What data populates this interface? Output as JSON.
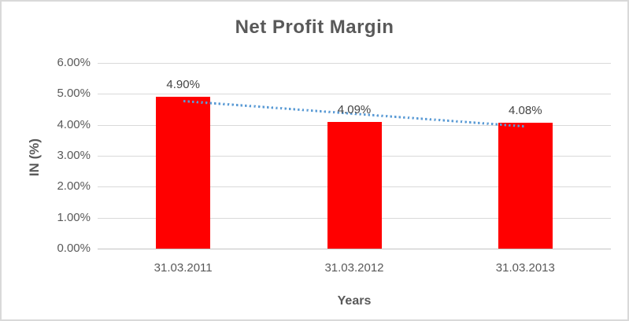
{
  "chart_data": {
    "type": "bar",
    "title": "Net Profit Margin",
    "xlabel": "Years",
    "ylabel": "IN (%)",
    "categories": [
      "31.03.2011",
      "31.03.2012",
      "31.03.2013"
    ],
    "values": [
      4.9,
      4.09,
      4.08
    ],
    "data_labels": [
      "4.90%",
      "4.09%",
      "4.08%"
    ],
    "yticks": [
      "0.00%",
      "1.00%",
      "2.00%",
      "3.00%",
      "4.00%",
      "5.00%",
      "6.00%"
    ],
    "ylim": [
      0,
      6
    ],
    "grid": true,
    "legend": "none",
    "bar_color": "#ff0000",
    "trendline": {
      "type": "linear",
      "style": "dotted",
      "color": "#5b9bd5"
    },
    "text_color": "#595959",
    "gridline_color": "#d9d9d9",
    "frame_border_color": "#d9d9d9"
  }
}
